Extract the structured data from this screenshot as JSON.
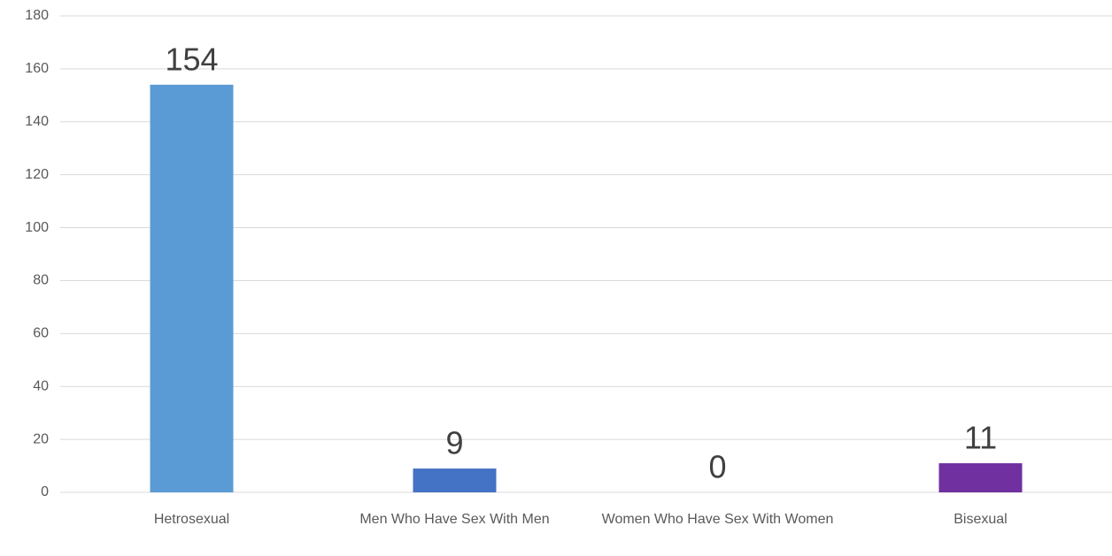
{
  "chart_data": {
    "type": "bar",
    "categories": [
      "Hetrosexual",
      "Men Who Have Sex With Men",
      "Women Who Have Sex With Women",
      "Bisexual"
    ],
    "values": [
      154,
      9,
      0,
      11
    ],
    "colors": [
      "#5b9bd5",
      "#4472c4",
      null,
      "#7030a0"
    ],
    "ylim": [
      0,
      180
    ],
    "yticks": [
      0,
      20,
      40,
      60,
      80,
      100,
      120,
      140,
      160,
      180
    ],
    "grid": true
  }
}
